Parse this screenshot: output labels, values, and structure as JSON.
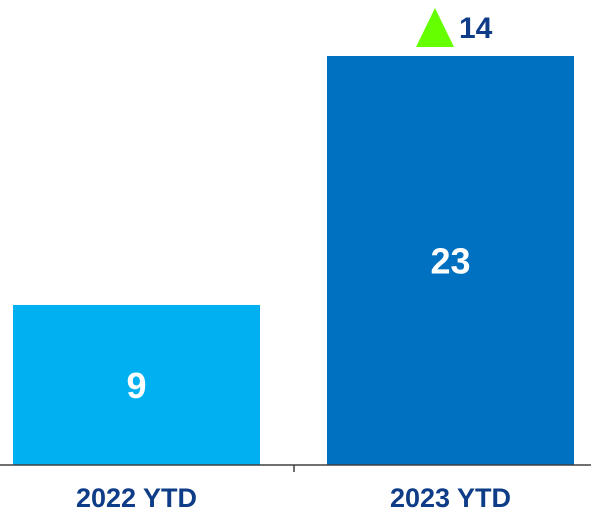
{
  "chart_data": {
    "type": "bar",
    "categories": [
      "2022 YTD",
      "2023 YTD"
    ],
    "values": [
      9,
      23
    ],
    "data_labels": [
      "9",
      "23"
    ],
    "ylim": [
      0,
      23
    ],
    "grid": false,
    "legend": "none",
    "annotation": {
      "text": "14",
      "icon": "up-triangle-icon",
      "target_category": "2023 YTD"
    },
    "colors": {
      "bars": [
        "#00b0f0",
        "#0070c0"
      ],
      "data_label": "#ffffff",
      "category_label": "#0f3c87",
      "annotation_text": "#0f3c87",
      "annotation_icon": "#66ff00",
      "axis": "#404040"
    }
  }
}
